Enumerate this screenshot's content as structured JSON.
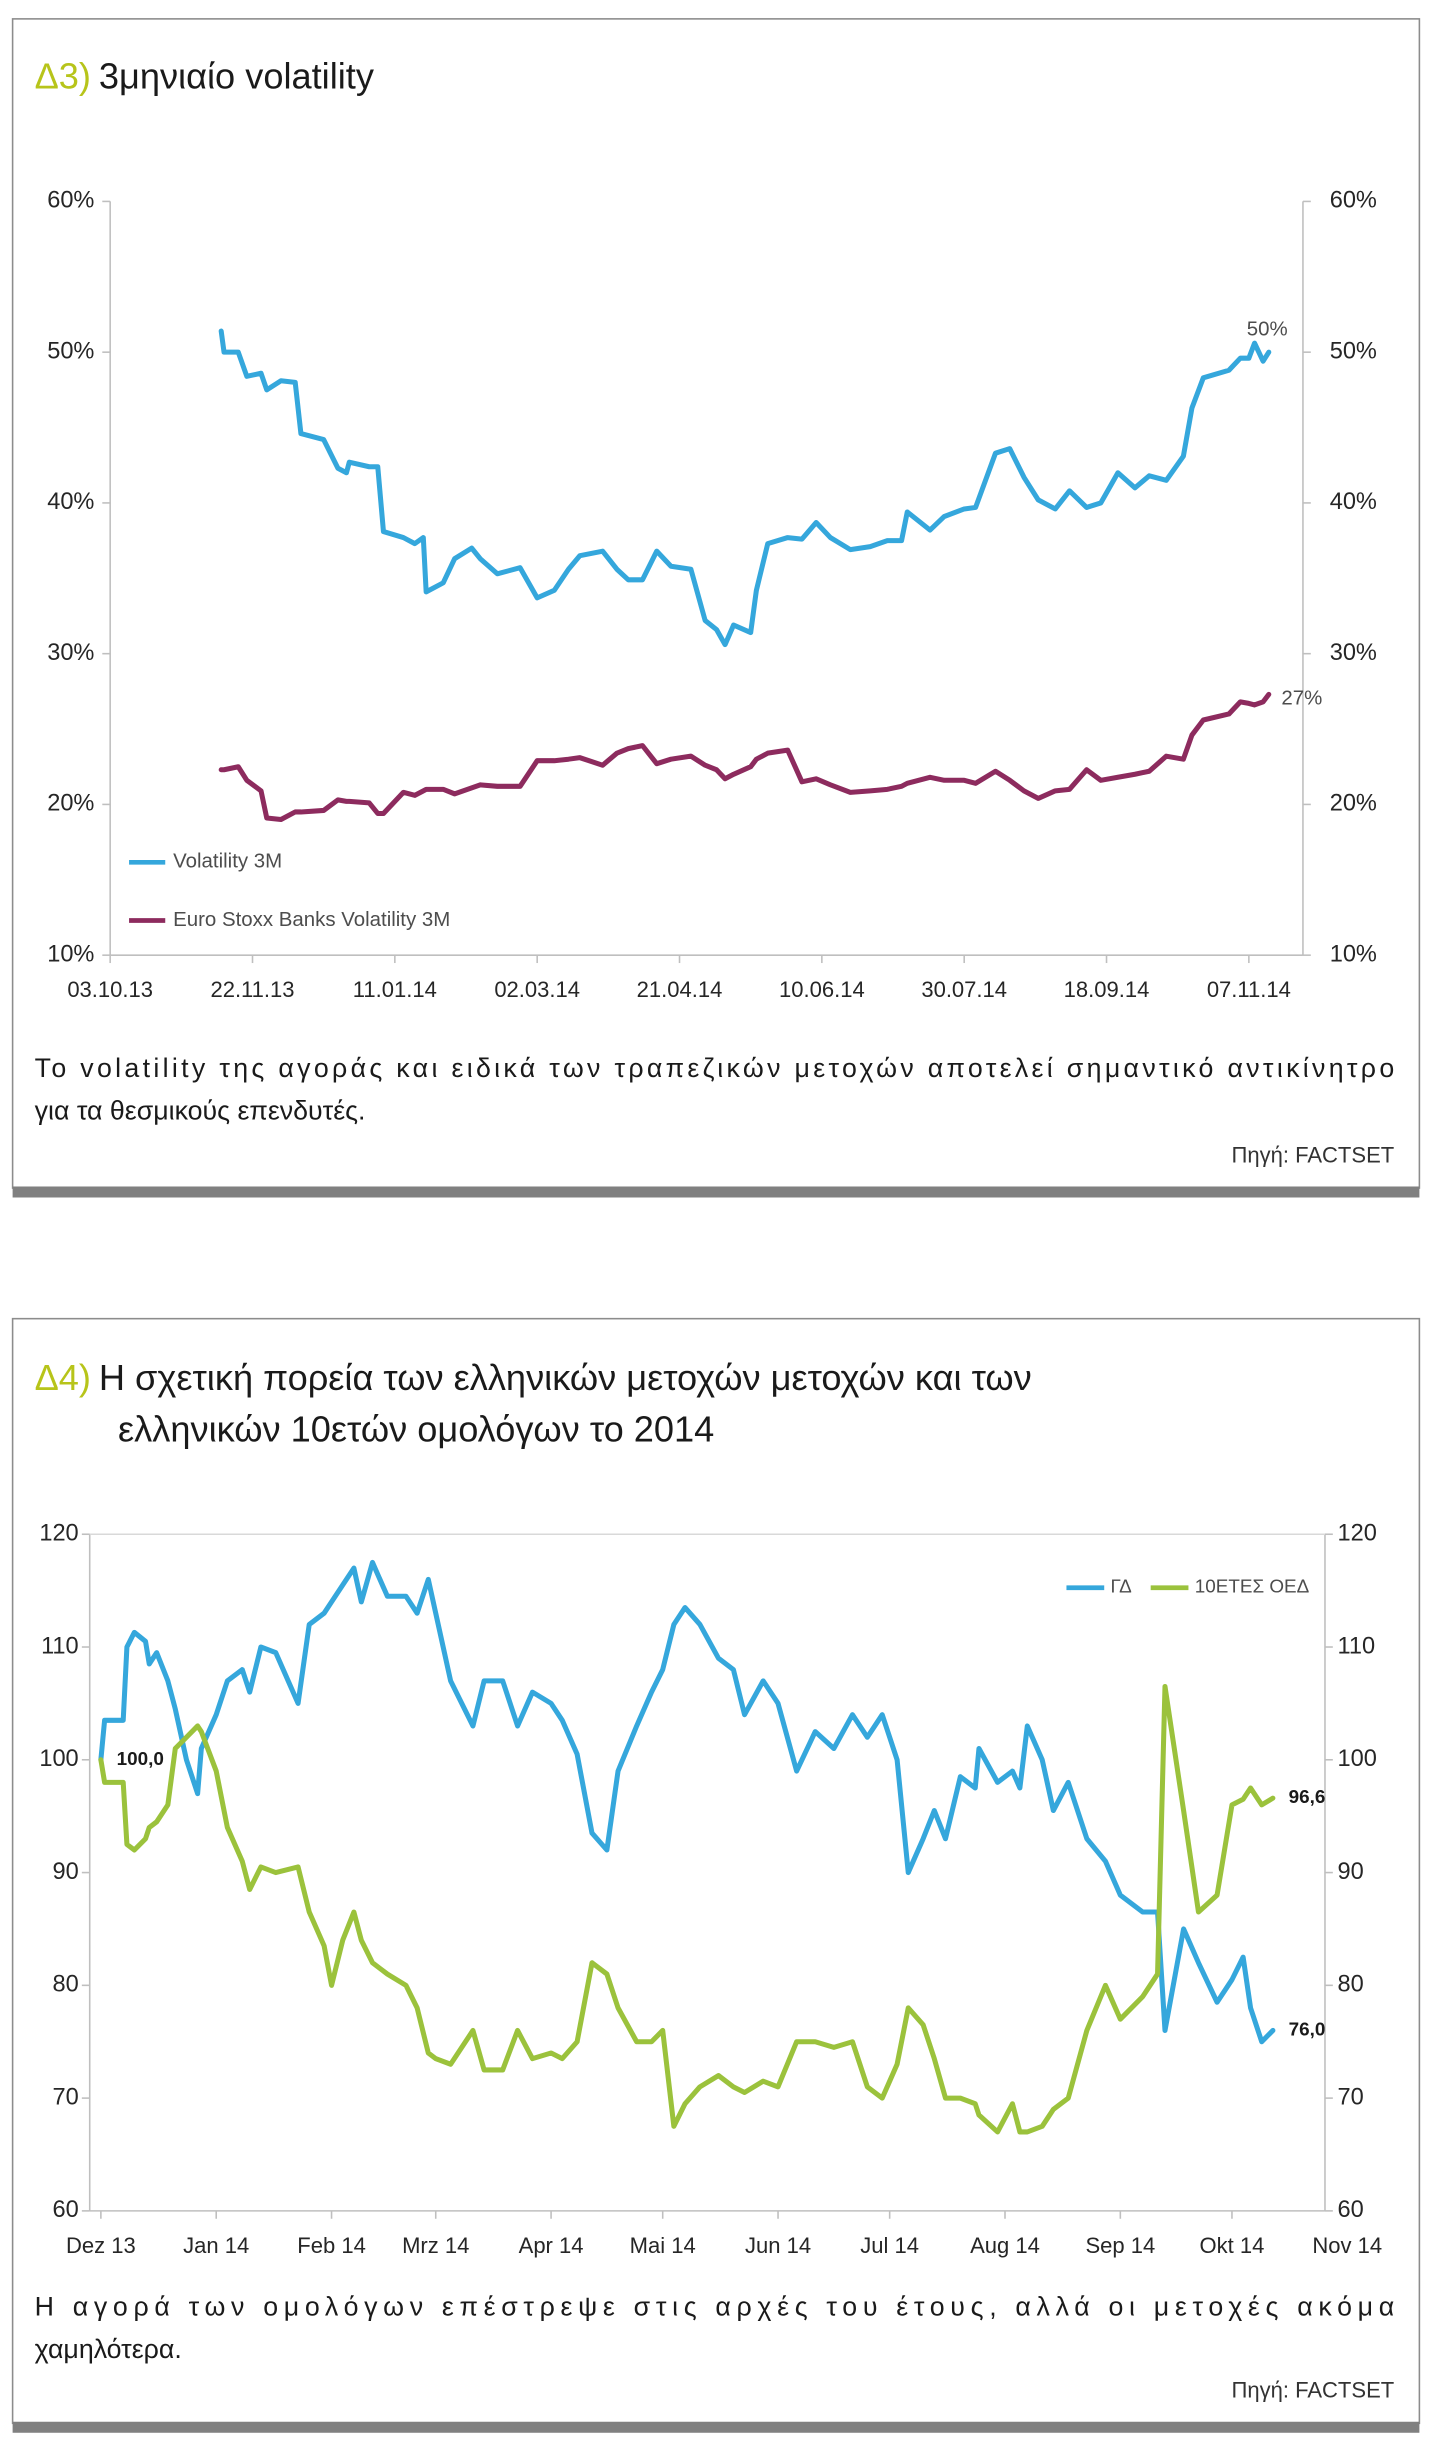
{
  "chart_data": [
    {
      "type": "line",
      "label": "Δ3)",
      "title": "3μηνιαίο volatility",
      "x": [
        "2013-11-11",
        "2013-11-12",
        "2013-11-17",
        "2013-11-20",
        "2013-11-25",
        "2013-11-27",
        "2013-12-02",
        "2013-12-07",
        "2013-12-09",
        "2013-12-17",
        "2013-12-22",
        "2013-12-25",
        "2013-12-26",
        "2014-01-02",
        "2014-01-05",
        "2014-01-07",
        "2014-01-14",
        "2014-01-18",
        "2014-01-21",
        "2014-01-22",
        "2014-01-28",
        "2014-02-01",
        "2014-02-07",
        "2014-02-10",
        "2014-02-16",
        "2014-02-24",
        "2014-03-02",
        "2014-03-08",
        "2014-03-13",
        "2014-03-17",
        "2014-03-25",
        "2014-03-30",
        "2014-04-03",
        "2014-04-08",
        "2014-04-13",
        "2014-04-18",
        "2014-04-25",
        "2014-04-30",
        "2014-05-04",
        "2014-05-07",
        "2014-05-10",
        "2014-05-16",
        "2014-05-18",
        "2014-05-22",
        "2014-05-29",
        "2014-06-03",
        "2014-06-08",
        "2014-06-13",
        "2014-06-20",
        "2014-06-27",
        "2014-07-03",
        "2014-07-08",
        "2014-07-10",
        "2014-07-18",
        "2014-07-23",
        "2014-07-30",
        "2014-08-03",
        "2014-08-10",
        "2014-08-15",
        "2014-08-20",
        "2014-08-25",
        "2014-08-31",
        "2014-09-05",
        "2014-09-11",
        "2014-09-16",
        "2014-09-22",
        "2014-09-28",
        "2014-10-03",
        "2014-10-09",
        "2014-10-15",
        "2014-10-18",
        "2014-10-22",
        "2014-10-31",
        "2014-11-04",
        "2014-11-07",
        "2014-11-09",
        "2014-11-12",
        "2014-11-14"
      ],
      "series": [
        {
          "name": "Volatility 3M",
          "color": "#35a7dc",
          "values": [
            51.4,
            50,
            50,
            48.4,
            48.6,
            47.5,
            48.1,
            48,
            44.6,
            44.2,
            42.3,
            42,
            42.7,
            42.4,
            42.4,
            38.1,
            37.7,
            37.3,
            37.7,
            34.1,
            34.7,
            36.3,
            37,
            36.3,
            35.3,
            35.7,
            33.7,
            34.2,
            35.6,
            36.5,
            36.8,
            35.6,
            34.9,
            34.9,
            36.8,
            35.8,
            35.6,
            32.2,
            31.6,
            30.6,
            31.9,
            31.4,
            34.2,
            37.3,
            37.7,
            37.6,
            38.7,
            37.7,
            36.9,
            37.1,
            37.5,
            37.5,
            39.4,
            38.2,
            39.1,
            39.6,
            39.7,
            43.3,
            43.6,
            41.7,
            40.2,
            39.6,
            40.8,
            39.7,
            40,
            42,
            41,
            41.8,
            41.5,
            43.1,
            46.3,
            48.3,
            48.8,
            49.6,
            49.6,
            50.6,
            49.4,
            50
          ]
        },
        {
          "name": "Euro Stoxx Banks Volatility 3M",
          "color": "#8d2b5e",
          "values": [
            22.3,
            22.3,
            22.5,
            21.6,
            20.9,
            19.1,
            19,
            19.5,
            19.5,
            19.6,
            20.3,
            20.2,
            20.2,
            20.1,
            19.4,
            19.4,
            20.8,
            20.6,
            20.9,
            21,
            21,
            20.7,
            21.1,
            21.3,
            21.2,
            21.2,
            22.9,
            22.9,
            23,
            23.1,
            22.6,
            23.4,
            23.7,
            23.9,
            22.7,
            23,
            23.2,
            22.6,
            22.3,
            21.7,
            22,
            22.5,
            23,
            23.4,
            23.6,
            21.5,
            21.7,
            21.3,
            20.8,
            20.9,
            21,
            21.2,
            21.4,
            21.8,
            21.6,
            21.6,
            21.4,
            22.2,
            21.6,
            20.9,
            20.4,
            20.9,
            21,
            22.3,
            21.6,
            21.8,
            22,
            22.2,
            23.2,
            23,
            24.6,
            25.6,
            26,
            26.8,
            26.7,
            26.6,
            26.8,
            27.3
          ]
        }
      ],
      "annotations": [
        {
          "text": "50%",
          "x": "2014-11-14",
          "y": 50
        },
        {
          "text": "27%",
          "x": "2014-11-14",
          "y": 27
        }
      ],
      "xlim": [
        "2013-10-03",
        "2014-11-26"
      ],
      "xticks": [
        {
          "value": "2013-10-03",
          "label": "03.10.13"
        },
        {
          "value": "2013-11-22",
          "label": "22.11.13"
        },
        {
          "value": "2014-01-11",
          "label": "11.01.14"
        },
        {
          "value": "2014-03-02",
          "label": "02.03.14"
        },
        {
          "value": "2014-04-21",
          "label": "21.04.14"
        },
        {
          "value": "2014-06-10",
          "label": "10.06.14"
        },
        {
          "value": "2014-07-30",
          "label": "30.07.14"
        },
        {
          "value": "2014-09-18",
          "label": "18.09.14"
        },
        {
          "value": "2014-11-07",
          "label": "07.11.14"
        }
      ],
      "ylim": [
        10,
        60
      ],
      "yticks": [
        {
          "value": 10,
          "label": "10%"
        },
        {
          "value": 20,
          "label": "20%"
        },
        {
          "value": 30,
          "label": "30%"
        },
        {
          "value": 40,
          "label": "40%"
        },
        {
          "value": 50,
          "label": "50%"
        },
        {
          "value": 60,
          "label": "60%"
        }
      ],
      "y2lim": [
        10,
        60
      ],
      "y2ticks": [
        {
          "value": 10,
          "label": "10%"
        },
        {
          "value": 20,
          "label": "20%"
        },
        {
          "value": 30,
          "label": "30%"
        },
        {
          "value": 40,
          "label": "40%"
        },
        {
          "value": 50,
          "label": "50%"
        },
        {
          "value": 60,
          "label": "60%"
        }
      ],
      "legend": "lower left",
      "caption": [
        "Το volatility της αγοράς και ειδικά των τραπεζικών μετοχών αποτελεί σημαντικό αντικίνητρο",
        "για τα θεσμικούς επενδυτές."
      ],
      "source": "Πηγή: FACTSET"
    },
    {
      "type": "line",
      "label": "Δ4)",
      "title": [
        "Η σχετική πορεία των ελληνικών μετοχών μετοχών και των",
        "ελληνικών 10ετών ομολόγων το 2014"
      ],
      "x": [
        "2013-12-01",
        "2013-12-02",
        "2013-12-07",
        "2013-12-08",
        "2013-12-10",
        "2013-12-13",
        "2013-12-14",
        "2013-12-16",
        "2013-12-19",
        "2013-12-21",
        "2013-12-24",
        "2013-12-27",
        "2013-12-28",
        "2014-01-01",
        "2014-01-04",
        "2014-01-08",
        "2014-01-10",
        "2014-01-13",
        "2014-01-17",
        "2014-01-23",
        "2014-01-26",
        "2014-01-30",
        "2014-02-01",
        "2014-02-04",
        "2014-02-07",
        "2014-02-09",
        "2014-02-12",
        "2014-02-16",
        "2014-02-21",
        "2014-02-24",
        "2014-02-27",
        "2014-03-01",
        "2014-03-05",
        "2014-03-11",
        "2014-03-14",
        "2014-03-19",
        "2014-03-23",
        "2014-03-27",
        "2014-04-01",
        "2014-04-04",
        "2014-04-08",
        "2014-04-12",
        "2014-04-16",
        "2014-04-19",
        "2014-04-24",
        "2014-04-28",
        "2014-05-01",
        "2014-05-04",
        "2014-05-07",
        "2014-05-11",
        "2014-05-16",
        "2014-05-20",
        "2014-05-23",
        "2014-05-28",
        "2014-06-01",
        "2014-06-06",
        "2014-06-11",
        "2014-06-16",
        "2014-06-21",
        "2014-06-25",
        "2014-06-29",
        "2014-07-03",
        "2014-07-06",
        "2014-07-10",
        "2014-07-13",
        "2014-07-16",
        "2014-07-20",
        "2014-07-24",
        "2014-07-25",
        "2014-07-30",
        "2014-08-03",
        "2014-08-05",
        "2014-08-07",
        "2014-08-11",
        "2014-08-14",
        "2014-08-18",
        "2014-08-23",
        "2014-08-28",
        "2014-09-01",
        "2014-09-07",
        "2014-09-11",
        "2014-09-13",
        "2014-09-18",
        "2014-09-22",
        "2014-09-27",
        "2014-10-01",
        "2014-10-04",
        "2014-10-06",
        "2014-10-09",
        "2014-10-12"
      ],
      "series": [
        {
          "name": "ΓΔ",
          "color": "#35a7dc",
          "values": [
            100,
            103.5,
            103.5,
            110,
            111.3,
            110.5,
            108.5,
            109.5,
            107,
            104.5,
            100,
            97,
            101,
            104,
            107,
            108,
            106,
            110,
            109.5,
            105,
            112,
            113,
            114,
            115.5,
            117,
            114,
            117.5,
            114.5,
            114.5,
            113,
            116,
            113,
            107,
            103,
            107,
            107,
            103,
            106,
            105,
            103.5,
            100.5,
            93.5,
            92,
            99,
            103,
            106,
            108,
            112,
            113.5,
            112,
            109,
            108,
            104,
            107,
            105,
            99,
            102.5,
            101,
            104,
            102,
            104,
            100,
            90,
            93,
            95.5,
            93,
            98.5,
            97.5,
            101,
            98,
            99,
            97.5,
            103,
            100,
            95.5,
            98,
            93,
            91,
            88,
            86.5,
            86.5,
            76,
            85,
            82,
            78.5,
            80.5,
            82.5,
            78,
            75,
            76
          ]
        },
        {
          "name": "10ΕΤΕΣ ΟΕΔ",
          "color": "#9bc23c",
          "values": [
            100,
            98,
            98,
            92.5,
            92,
            93,
            94,
            94.5,
            96,
            101,
            102,
            103,
            102.5,
            99,
            94,
            91,
            88.5,
            90.5,
            90,
            90.5,
            86.5,
            83.5,
            80,
            84,
            86.5,
            84,
            82,
            81,
            80,
            78,
            74,
            73.5,
            73,
            76,
            72.5,
            72.5,
            76,
            73.5,
            74,
            73.5,
            75,
            82,
            81,
            78,
            75,
            75,
            76,
            67.5,
            69.5,
            71,
            72,
            71,
            70.5,
            71.5,
            71,
            75,
            75,
            74.5,
            75,
            71,
            70,
            73,
            78,
            76.5,
            73.5,
            70,
            70,
            69.5,
            68.5,
            67,
            69.5,
            67,
            67,
            67.5,
            69,
            70,
            76,
            80,
            77,
            79,
            81,
            106.5,
            95.5,
            86.5,
            88,
            96,
            96.5,
            97.5,
            96,
            96.6
          ]
        }
      ],
      "annotations": [
        {
          "text": "100,0",
          "x": "2013-12-01",
          "y": 100
        },
        {
          "text": "76,0",
          "x": "2014-10-12",
          "y": 76
        },
        {
          "text": "96,6",
          "x": "2014-10-12",
          "y": 96.6
        }
      ],
      "xlim": [
        "2013-11-28",
        "2014-10-26"
      ],
      "xticks": [
        {
          "value": "2013-12-01",
          "label": "Dez 13"
        },
        {
          "value": "2014-01-01",
          "label": "Jan 14"
        },
        {
          "value": "2014-02-01",
          "label": "Feb 14"
        },
        {
          "value": "2014-03-01",
          "label": "Mrz 14"
        },
        {
          "value": "2014-04-01",
          "label": "Apr 14"
        },
        {
          "value": "2014-05-01",
          "label": "Mai 14"
        },
        {
          "value": "2014-06-01",
          "label": "Jun 14"
        },
        {
          "value": "2014-07-01",
          "label": "Jul 14"
        },
        {
          "value": "2014-08-01",
          "label": "Aug 14"
        },
        {
          "value": "2014-09-01",
          "label": "Sep 14"
        },
        {
          "value": "2014-10-01",
          "label": "Okt 14"
        },
        {
          "value": "2014-11-01",
          "label": "Nov 14"
        }
      ],
      "ylim": [
        60,
        120
      ],
      "yticks": [
        60,
        70,
        80,
        90,
        100,
        110,
        120
      ],
      "y2lim": [
        60,
        120
      ],
      "y2ticks": [
        60,
        70,
        80,
        90,
        100,
        110,
        120
      ],
      "legend": "upper right",
      "caption": [
        "Η αγορά των ομολόγων επέστρεψε στις αρχές του έτους, αλλά οι μετοχές ακόμα",
        "χαμηλότερα."
      ],
      "source": "Πηγή: FACTSET"
    }
  ]
}
